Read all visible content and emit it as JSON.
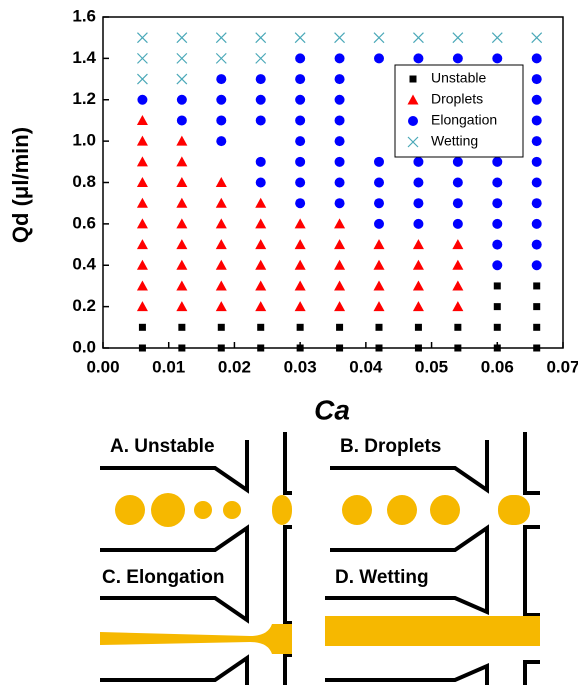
{
  "chart_data": {
    "type": "scatter",
    "x_label": "Ca",
    "y_label": "Qd (μl/min)",
    "xlim": [
      0,
      0.07
    ],
    "ylim": [
      0,
      1.6
    ],
    "xticks": [
      {
        "value": 0,
        "label": "0.00"
      },
      {
        "value": 0.01,
        "label": "0.01"
      },
      {
        "value": 0.02,
        "label": "0.02"
      },
      {
        "value": 0.03,
        "label": "0.03"
      },
      {
        "value": 0.04,
        "label": "0.04"
      },
      {
        "value": 0.05,
        "label": "0.05"
      },
      {
        "value": 0.06,
        "label": "0.06"
      },
      {
        "value": 0.07,
        "label": "0.07"
      }
    ],
    "yticks": [
      {
        "value": 0,
        "label": "0.0"
      },
      0.2,
      0.4,
      0.6,
      0.8,
      {
        "value": 1,
        "label": "1.0"
      },
      1.2,
      1.4,
      1.6
    ],
    "legend": "upper right",
    "series": [
      {
        "name": "Unstable",
        "color": "#000000",
        "marker": "square",
        "x": [
          0.006,
          0.006,
          0.012,
          0.012,
          0.018,
          0.018,
          0.024,
          0.024,
          0.03,
          0.03,
          0.036,
          0.036,
          0.042,
          0.042,
          0.048,
          0.048,
          0.054,
          0.054,
          0.06,
          0.06,
          0.06,
          0.06,
          0.066,
          0.066,
          0.066,
          0.066
        ],
        "values": [
          0,
          0.1,
          0,
          0.1,
          0,
          0.1,
          0,
          0.1,
          0,
          0.1,
          0,
          0.1,
          0,
          0.1,
          0,
          0.1,
          0,
          0.1,
          0,
          0.1,
          0.2,
          0.3,
          0,
          0.1,
          0.2,
          0.3
        ]
      },
      {
        "name": "Droplets",
        "color": "#ff0000",
        "marker": "triangle",
        "x": [
          0.006,
          0.006,
          0.006,
          0.006,
          0.006,
          0.006,
          0.006,
          0.006,
          0.006,
          0.006,
          0.012,
          0.012,
          0.012,
          0.012,
          0.012,
          0.012,
          0.012,
          0.012,
          0.012,
          0.018,
          0.018,
          0.018,
          0.018,
          0.018,
          0.018,
          0.018,
          0.024,
          0.024,
          0.024,
          0.024,
          0.024,
          0.024,
          0.03,
          0.03,
          0.03,
          0.03,
          0.03,
          0.036,
          0.036,
          0.036,
          0.036,
          0.036,
          0.042,
          0.042,
          0.042,
          0.042,
          0.048,
          0.048,
          0.048,
          0.048,
          0.054,
          0.054,
          0.054,
          0.054
        ],
        "values": [
          0.2,
          0.3,
          0.4,
          0.5,
          0.6,
          0.7,
          0.8,
          0.9,
          1.0,
          1.1,
          0.2,
          0.3,
          0.4,
          0.5,
          0.6,
          0.7,
          0.8,
          0.9,
          1.0,
          0.2,
          0.3,
          0.4,
          0.5,
          0.6,
          0.7,
          0.8,
          0.2,
          0.3,
          0.4,
          0.5,
          0.6,
          0.7,
          0.2,
          0.3,
          0.4,
          0.5,
          0.6,
          0.2,
          0.3,
          0.4,
          0.5,
          0.6,
          0.2,
          0.3,
          0.4,
          0.5,
          0.2,
          0.3,
          0.4,
          0.5,
          0.2,
          0.3,
          0.4,
          0.5
        ]
      },
      {
        "name": "Elongation",
        "color": "#0000ff",
        "marker": "circle",
        "x": [
          0.006,
          0.012,
          0.012,
          0.018,
          0.018,
          0.018,
          0.018,
          0.024,
          0.024,
          0.024,
          0.024,
          0.024,
          0.03,
          0.03,
          0.03,
          0.03,
          0.03,
          0.03,
          0.03,
          0.03,
          0.036,
          0.036,
          0.036,
          0.036,
          0.036,
          0.036,
          0.036,
          0.036,
          0.042,
          0.042,
          0.042,
          0.042,
          0.042,
          0.048,
          0.048,
          0.048,
          0.048,
          0.048,
          0.054,
          0.054,
          0.054,
          0.054,
          0.054,
          0.06,
          0.06,
          0.06,
          0.06,
          0.06,
          0.06,
          0.06,
          0.066,
          0.066,
          0.066,
          0.066,
          0.066,
          0.066,
          0.066,
          0.066,
          0.066,
          0.066,
          0.066
        ],
        "values": [
          1.2,
          1.1,
          1.2,
          1.0,
          1.1,
          1.2,
          1.3,
          0.8,
          0.9,
          1.1,
          1.2,
          1.3,
          0.7,
          0.8,
          0.9,
          1.0,
          1.1,
          1.2,
          1.3,
          1.4,
          0.7,
          0.8,
          0.9,
          1.0,
          1.1,
          1.2,
          1.3,
          1.4,
          0.6,
          0.7,
          0.8,
          0.9,
          1.4,
          0.6,
          0.7,
          0.8,
          0.9,
          1.4,
          0.6,
          0.7,
          0.8,
          0.9,
          1.4,
          0.4,
          0.5,
          0.6,
          0.7,
          0.8,
          0.9,
          1.4,
          0.4,
          0.5,
          0.6,
          0.7,
          0.8,
          0.9,
          1.0,
          1.1,
          1.2,
          1.3,
          1.4
        ]
      },
      {
        "name": "Wetting",
        "color": "#4aa8b8",
        "marker": "x",
        "x": [
          0.006,
          0.006,
          0.006,
          0.012,
          0.012,
          0.012,
          0.018,
          0.018,
          0.024,
          0.024,
          0.03,
          0.036,
          0.042,
          0.048,
          0.054,
          0.06,
          0.066
        ],
        "values": [
          1.3,
          1.4,
          1.5,
          1.3,
          1.4,
          1.5,
          1.4,
          1.5,
          1.4,
          1.5,
          1.5,
          1.5,
          1.5,
          1.5,
          1.5,
          1.5,
          1.5
        ]
      }
    ]
  },
  "schematics": {
    "labels": [
      "A. Unstable",
      "B. Droplets",
      "C. Elongation",
      "D. Wetting"
    ]
  }
}
